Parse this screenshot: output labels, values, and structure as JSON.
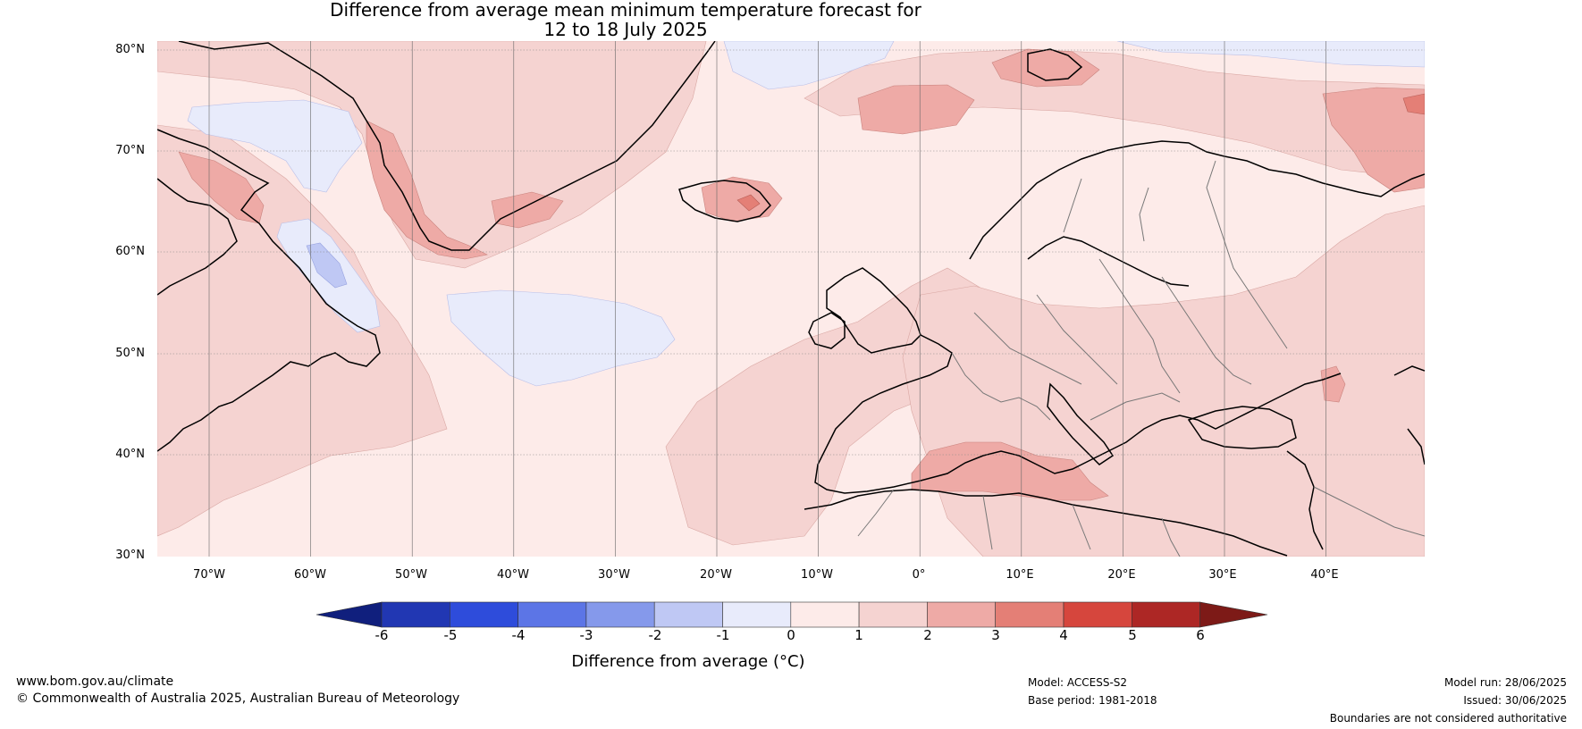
{
  "title_line1": "Difference from average mean minimum temperature forecast for",
  "title_line2": "12 to 18 July 2025",
  "lat_labels": [
    "80°N",
    "70°N",
    "60°N",
    "50°N",
    "40°N",
    "30°N"
  ],
  "lon_labels": [
    "70°W",
    "60°W",
    "50°W",
    "40°W",
    "30°W",
    "20°W",
    "10°W",
    "0°",
    "10°E",
    "20°E",
    "30°E",
    "40°E"
  ],
  "colorbar": {
    "ticks": [
      "-6",
      "-5",
      "-4",
      "-3",
      "-2",
      "-1",
      "0",
      "1",
      "2",
      "3",
      "4",
      "5",
      "6"
    ],
    "colors": [
      "#101f7d",
      "#2137b3",
      "#2e4cdb",
      "#5c75e6",
      "#8599eb",
      "#bfc8f4",
      "#e8ebfb",
      "#fdebe9",
      "#f5d3d1",
      "#eeaaa6",
      "#e47f76",
      "#d6463d",
      "#ad2725",
      "#7d1a17"
    ],
    "label": "Difference from average (°C)"
  },
  "footer": {
    "website": "www.bom.gov.au/climate",
    "copyright": "© Commonwealth of Australia 2025, Australian Bureau of Meteorology",
    "model": "Model: ACCESS-S2",
    "base_period": "Base period: 1981-2018",
    "model_run": "Model run: 28/06/2025",
    "issued": "Issued: 30/06/2025",
    "disclaimer": "Boundaries are not considered authoritative"
  }
}
